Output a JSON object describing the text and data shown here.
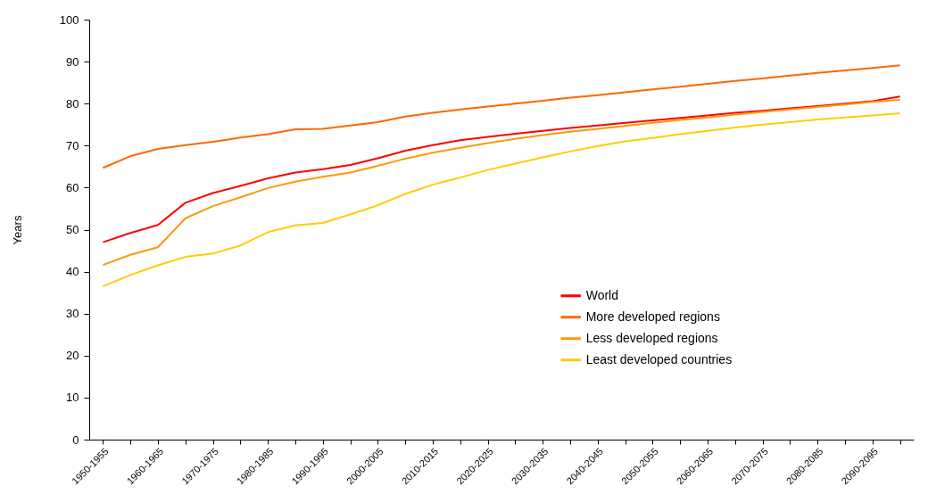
{
  "chart_data": {
    "type": "line",
    "ylabel": "Years",
    "categories": [
      "1950-1955",
      null,
      "1960-1965",
      null,
      "1970-1975",
      null,
      "1980-1985",
      null,
      "1990-1995",
      null,
      "2000-2005",
      null,
      "2010-2015",
      null,
      "2020-2025",
      null,
      "2030-2035",
      null,
      "2040-2045",
      null,
      "2050-2055",
      null,
      "2060-2065",
      null,
      "2070-2075",
      null,
      "2080-2085",
      null,
      "2090-2095",
      null
    ],
    "series": [
      {
        "name": "World",
        "color": "#ff0000",
        "values": [
          47.0,
          49.2,
          51.1,
          56.4,
          58.7,
          60.4,
          62.2,
          63.6,
          64.4,
          65.4,
          67.0,
          68.8,
          70.1,
          71.3,
          72.1,
          72.8,
          73.5,
          74.2,
          74.8,
          75.4,
          76.0,
          76.6,
          77.2,
          77.8,
          78.3,
          78.9,
          79.4,
          80.0,
          80.6,
          81.7
        ]
      },
      {
        "name": "More developed regions",
        "color": "#ff6600",
        "values": [
          64.7,
          67.5,
          69.2,
          70.1,
          70.9,
          71.9,
          72.7,
          73.9,
          74.0,
          74.8,
          75.6,
          76.9,
          77.8,
          78.6,
          79.3,
          80.0,
          80.7,
          81.4,
          82.0,
          82.7,
          83.4,
          84.0,
          84.7,
          85.4,
          86.0,
          86.7,
          87.3,
          87.9,
          88.5,
          89.1
        ]
      },
      {
        "name": "Less developed regions",
        "color": "#ff9900",
        "values": [
          41.6,
          44.0,
          45.8,
          52.7,
          55.6,
          57.7,
          59.9,
          61.4,
          62.6,
          63.6,
          65.2,
          66.9,
          68.3,
          69.5,
          70.6,
          71.6,
          72.5,
          73.3,
          74.0,
          74.7,
          75.4,
          76.1,
          76.7,
          77.4,
          78.0,
          78.6,
          79.2,
          79.8,
          80.4,
          80.9
        ]
      },
      {
        "name": "Least developed countries",
        "color": "#ffcc00",
        "values": [
          36.5,
          39.2,
          41.5,
          43.5,
          44.3,
          46.2,
          49.4,
          51.0,
          51.6,
          53.6,
          55.8,
          58.5,
          60.7,
          62.4,
          64.2,
          65.7,
          67.2,
          68.6,
          69.9,
          71.0,
          71.8,
          72.7,
          73.5,
          74.3,
          75.0,
          75.6,
          76.2,
          76.7,
          77.2,
          77.7
        ]
      }
    ],
    "ylim": [
      0,
      100
    ],
    "yticks": [
      0,
      10,
      20,
      30,
      40,
      50,
      60,
      70,
      80,
      90,
      100
    ],
    "grid": false,
    "legend": "right",
    "marker": "none",
    "line_style": "solid"
  }
}
